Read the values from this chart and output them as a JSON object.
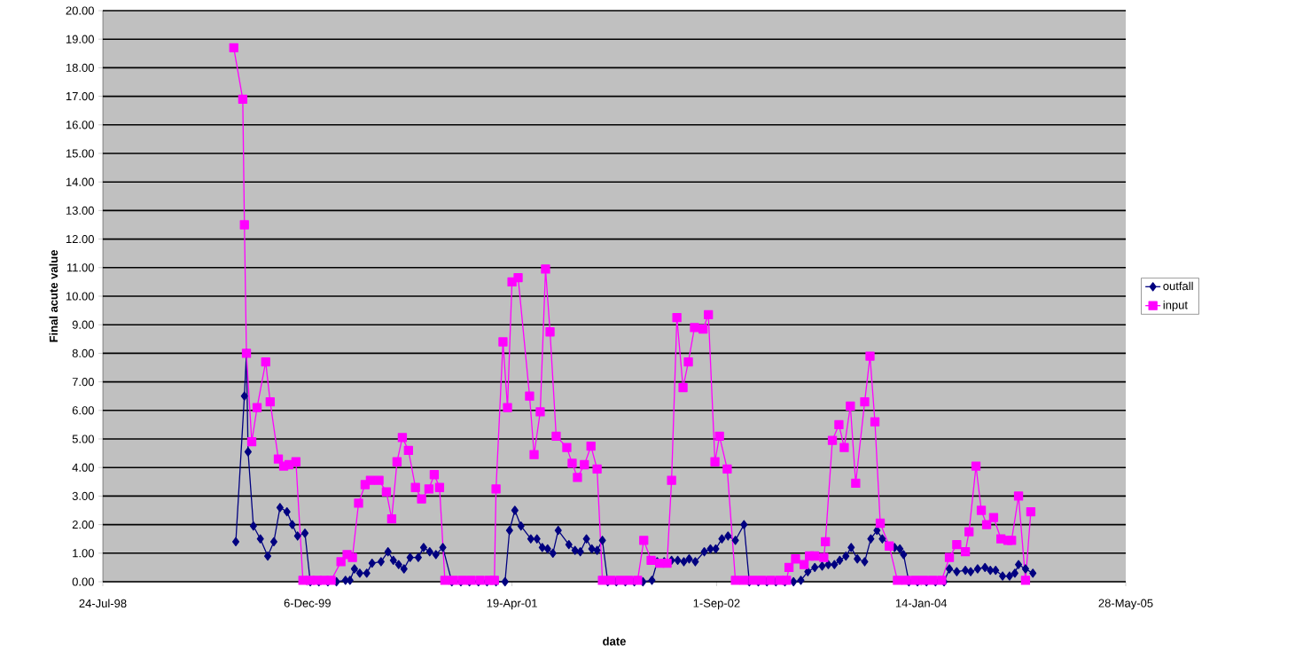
{
  "chart_data": {
    "type": "line",
    "xlabel": "date",
    "ylabel": "Final acute value",
    "xlim": [
      "1998-07-24",
      "2005-05-28"
    ],
    "xticks": [
      {
        "value": "1998-07-24",
        "label": "24-Jul-98"
      },
      {
        "value": "1999-12-06",
        "label": "6-Dec-99"
      },
      {
        "value": "2001-04-19",
        "label": "19-Apr-01"
      },
      {
        "value": "2002-09-01",
        "label": "1-Sep-02"
      },
      {
        "value": "2004-01-14",
        "label": "14-Jan-04"
      },
      {
        "value": "2005-05-28",
        "label": "28-May-05"
      }
    ],
    "ylim": [
      0,
      20
    ],
    "yticks": [
      {
        "value": 0,
        "label": "0.00"
      },
      {
        "value": 1,
        "label": "1.00"
      },
      {
        "value": 2,
        "label": "2.00"
      },
      {
        "value": 3,
        "label": "3.00"
      },
      {
        "value": 4,
        "label": "4.00"
      },
      {
        "value": 5,
        "label": "5.00"
      },
      {
        "value": 6,
        "label": "6.00"
      },
      {
        "value": 7,
        "label": "7.00"
      },
      {
        "value": 8,
        "label": "8.00"
      },
      {
        "value": 9,
        "label": "9.00"
      },
      {
        "value": 10,
        "label": "10.00"
      },
      {
        "value": 11,
        "label": "11.00"
      },
      {
        "value": 12,
        "label": "12.00"
      },
      {
        "value": 13,
        "label": "13.00"
      },
      {
        "value": 14,
        "label": "14.00"
      },
      {
        "value": 15,
        "label": "15.00"
      },
      {
        "value": 16,
        "label": "16.00"
      },
      {
        "value": 17,
        "label": "17.00"
      },
      {
        "value": 18,
        "label": "18.00"
      },
      {
        "value": 19,
        "label": "19.00"
      },
      {
        "value": 20,
        "label": "20.00"
      }
    ],
    "grid": "y",
    "legend": "right",
    "line_style": "solid",
    "series": [
      {
        "name": "outfall",
        "color": "#000080",
        "marker": "diamond",
        "x": [
          "1999-06-14",
          "1999-07-05",
          "1999-07-10",
          "1999-07-14",
          "1999-07-27",
          "1999-08-13",
          "1999-08-31",
          "1999-09-15",
          "1999-09-30",
          "1999-10-17",
          "1999-10-30",
          "1999-11-12",
          "1999-11-30",
          "1999-12-13",
          "2000-01-03",
          "2000-01-25",
          "2000-02-15",
          "2000-03-08",
          "2000-03-19",
          "2000-03-30",
          "2000-04-12",
          "2000-04-29",
          "2000-05-12",
          "2000-06-03",
          "2000-06-20",
          "2000-07-03",
          "2000-07-16",
          "2000-07-29",
          "2000-08-13",
          "2000-09-02",
          "2000-09-15",
          "2000-09-30",
          "2000-10-15",
          "2000-11-01",
          "2000-11-23",
          "2000-12-15",
          "2001-01-05",
          "2001-01-27",
          "2001-02-17",
          "2001-03-11",
          "2001-04-02",
          "2001-04-13",
          "2001-04-26",
          "2001-05-11",
          "2001-06-04",
          "2001-06-19",
          "2001-07-02",
          "2001-07-15",
          "2001-07-28",
          "2001-08-10",
          "2001-09-05",
          "2001-09-20",
          "2001-10-03",
          "2001-10-18",
          "2001-10-31",
          "2001-11-13",
          "2001-11-26",
          "2001-12-09",
          "2001-12-30",
          "2002-01-21",
          "2002-02-12",
          "2002-03-05",
          "2002-03-27",
          "2002-04-09",
          "2002-04-26",
          "2002-05-14",
          "2002-05-29",
          "2002-06-13",
          "2002-06-26",
          "2002-07-11",
          "2002-08-02",
          "2002-08-17",
          "2002-08-30",
          "2002-09-14",
          "2002-09-29",
          "2002-10-17",
          "2002-11-07",
          "2002-11-20",
          "2002-12-12",
          "2003-01-02",
          "2003-01-24",
          "2003-02-15",
          "2003-03-08",
          "2003-03-26",
          "2003-04-12",
          "2003-04-29",
          "2003-05-17",
          "2003-06-01",
          "2003-06-16",
          "2003-06-29",
          "2003-07-14",
          "2003-07-27",
          "2003-08-11",
          "2003-08-29",
          "2003-09-13",
          "2003-09-28",
          "2003-10-11",
          "2003-11-10",
          "2003-11-23",
          "2003-12-02",
          "2003-12-15",
          "2004-01-05",
          "2004-01-27",
          "2004-02-18",
          "2004-03-10",
          "2004-03-23",
          "2004-04-10",
          "2004-05-01",
          "2004-05-14",
          "2004-05-31",
          "2004-06-18",
          "2004-07-01",
          "2004-07-14",
          "2004-07-31",
          "2004-08-17",
          "2004-08-30",
          "2004-09-08",
          "2004-09-25",
          "2004-10-13"
        ],
        "values": [
          1.4,
          6.5,
          8.0,
          4.55,
          1.95,
          1.5,
          0.9,
          1.4,
          2.6,
          2.45,
          2.0,
          1.6,
          1.7,
          0,
          0,
          0,
          0,
          0.05,
          0.05,
          0.45,
          0.3,
          0.3,
          0.65,
          0.7,
          1.05,
          0.75,
          0.6,
          0.45,
          0.85,
          0.85,
          1.2,
          1.05,
          0.95,
          1.2,
          0,
          0,
          0,
          0,
          0,
          0,
          0,
          1.8,
          2.5,
          1.95,
          1.5,
          1.5,
          1.2,
          1.15,
          1.0,
          1.8,
          1.3,
          1.1,
          1.05,
          1.5,
          1.15,
          1.1,
          1.45,
          0,
          0,
          0,
          0,
          0,
          0.05,
          0.7,
          0.7,
          0.75,
          0.75,
          0.7,
          0.8,
          0.7,
          1.05,
          1.15,
          1.15,
          1.5,
          1.6,
          1.45,
          2.0,
          0,
          0,
          0,
          0,
          0,
          0,
          0.05,
          0.35,
          0.5,
          0.55,
          0.6,
          0.6,
          0.75,
          0.9,
          1.2,
          0.8,
          0.7,
          1.5,
          1.8,
          1.5,
          1.2,
          1.15,
          0.95,
          0,
          0,
          0,
          0,
          0,
          0.45,
          0.35,
          0.4,
          0.35,
          0.45,
          0.5,
          0.4,
          0.4,
          0.2,
          0.2,
          0.3,
          0.6,
          0.45,
          0.3
        ]
      },
      {
        "name": "input",
        "color": "#ff00ff",
        "marker": "square",
        "x": [
          "1999-06-09",
          "1999-07-01",
          "1999-07-05",
          "1999-07-10",
          "1999-07-23",
          "1999-08-05",
          "1999-08-26",
          "1999-09-06",
          "1999-09-26",
          "1999-10-09",
          "1999-10-22",
          "1999-11-08",
          "1999-11-25",
          "1999-12-13",
          "1999-12-30",
          "2000-01-16",
          "2000-02-02",
          "2000-02-26",
          "2000-03-12",
          "2000-03-25",
          "2000-04-09",
          "2000-04-25",
          "2000-05-08",
          "2000-05-29",
          "2000-06-16",
          "2000-06-29",
          "2000-07-12",
          "2000-07-25",
          "2000-08-09",
          "2000-08-26",
          "2000-09-10",
          "2000-09-28",
          "2000-10-11",
          "2000-10-24",
          "2000-11-06",
          "2000-11-27",
          "2000-12-19",
          "2001-01-09",
          "2001-01-31",
          "2001-02-22",
          "2001-03-07",
          "2001-03-11",
          "2001-03-28",
          "2001-04-08",
          "2001-04-19",
          "2001-05-04",
          "2001-06-01",
          "2001-06-12",
          "2001-06-27",
          "2001-07-10",
          "2001-07-21",
          "2001-08-05",
          "2001-08-31",
          "2001-09-13",
          "2001-09-26",
          "2001-10-13",
          "2001-10-29",
          "2001-11-13",
          "2001-11-26",
          "2001-12-17",
          "2002-01-08",
          "2002-01-29",
          "2002-02-20",
          "2002-03-07",
          "2002-03-25",
          "2002-04-15",
          "2002-05-03",
          "2002-05-14",
          "2002-05-27",
          "2002-06-11",
          "2002-06-24",
          "2002-07-09",
          "2002-07-30",
          "2002-08-12",
          "2002-08-28",
          "2002-09-08",
          "2002-09-27",
          "2002-10-17",
          "2002-11-07",
          "2002-11-29",
          "2002-12-20",
          "2003-01-11",
          "2003-02-02",
          "2003-02-19",
          "2003-02-25",
          "2003-03-13",
          "2003-04-03",
          "2003-04-16",
          "2003-04-29",
          "2003-05-21",
          "2003-05-25",
          "2003-06-11",
          "2003-06-27",
          "2003-07-10",
          "2003-07-25",
          "2003-08-07",
          "2003-08-29",
          "2003-09-11",
          "2003-09-23",
          "2003-10-06",
          "2003-10-28",
          "2003-11-17",
          "2003-12-08",
          "2003-12-30",
          "2004-01-20",
          "2004-02-11",
          "2004-03-04",
          "2004-03-23",
          "2004-04-10",
          "2004-05-01",
          "2004-05-10",
          "2004-05-27",
          "2004-06-09",
          "2004-06-22",
          "2004-07-09",
          "2004-07-27",
          "2004-08-13",
          "2004-08-22",
          "2004-09-08",
          "2004-09-25",
          "2004-10-08"
        ],
        "values": [
          18.7,
          16.9,
          12.5,
          8.0,
          4.9,
          6.1,
          7.7,
          6.3,
          4.3,
          4.05,
          4.1,
          4.2,
          0.05,
          0.05,
          0.05,
          0.05,
          0.05,
          0.7,
          0.95,
          0.85,
          2.75,
          3.4,
          3.55,
          3.55,
          3.15,
          2.2,
          4.2,
          5.05,
          4.6,
          3.3,
          2.9,
          3.25,
          3.75,
          3.3,
          0.05,
          0.05,
          0.05,
          0.05,
          0.05,
          0.05,
          0.05,
          3.25,
          8.4,
          6.1,
          10.5,
          10.65,
          6.5,
          4.45,
          5.95,
          10.95,
          8.75,
          5.1,
          4.7,
          4.15,
          3.65,
          4.1,
          4.75,
          3.95,
          0.05,
          0.05,
          0.05,
          0.05,
          0.05,
          1.45,
          0.75,
          0.65,
          0.65,
          3.55,
          9.25,
          6.8,
          7.7,
          8.9,
          8.85,
          9.35,
          4.2,
          5.1,
          3.95,
          0.05,
          0.05,
          0.05,
          0.05,
          0.05,
          0.05,
          0.05,
          0.5,
          0.8,
          0.6,
          0.9,
          0.9,
          0.85,
          1.4,
          4.95,
          5.5,
          4.7,
          6.15,
          3.45,
          6.3,
          7.9,
          5.6,
          2.05,
          1.25,
          0.05,
          0.05,
          0.05,
          0.05,
          0.05,
          0.05,
          0.85,
          1.3,
          1.05,
          1.75,
          4.05,
          2.5,
          2.0,
          2.25,
          1.5,
          1.45,
          1.45,
          3.0,
          0.05,
          2.45
        ]
      }
    ]
  }
}
